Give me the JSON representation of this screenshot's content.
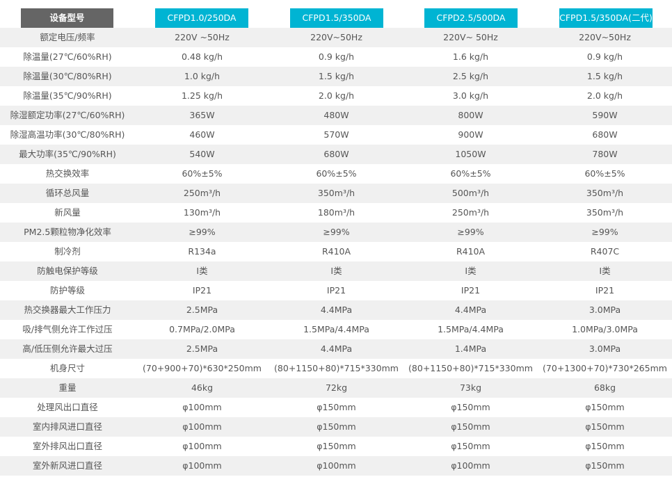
{
  "header": {
    "label": "设备型号",
    "models": [
      "CFPD1.0/250DA",
      "CFPD1.5/350DA",
      "CFPD2.5/500DA",
      "CFPD1.5/350DA(二代)"
    ]
  },
  "colors": {
    "header_dark": "#656565",
    "header_accent": "#00b4d3",
    "row_alt": "#f0f0f0",
    "text": "#555555"
  },
  "rows": [
    {
      "label": "额定电压/频率",
      "values": [
        "220V ~50Hz",
        "220V~50Hz",
        "220V~ 50Hz",
        "220V~50Hz"
      ]
    },
    {
      "label": "除温量(27℃/60%RH)",
      "values": [
        "0.48 kg/h",
        "0.9 kg/h",
        "1.6 kg/h",
        "0.9 kg/h"
      ]
    },
    {
      "label": "除温量(30℃/80%RH)",
      "values": [
        "1.0 kg/h",
        "1.5 kg/h",
        "2.5 kg/h",
        "1.5 kg/h"
      ]
    },
    {
      "label": "除温量(35℃/90%RH)",
      "values": [
        "1.25 kg/h",
        "2.0 kg/h",
        "3.0 kg/h",
        "2.0 kg/h"
      ]
    },
    {
      "label": "除湿额定功率(27℃/60%RH)",
      "values": [
        "365W",
        "480W",
        "800W",
        "590W"
      ]
    },
    {
      "label": "除湿高温功率(30℃/80%RH)",
      "values": [
        "460W",
        "570W",
        "900W",
        "680W"
      ]
    },
    {
      "label": "最大功率(35℃/90%RH)",
      "values": [
        "540W",
        "680W",
        "1050W",
        "780W"
      ]
    },
    {
      "label": "热交换效率",
      "values": [
        "60%±5%",
        "60%±5%",
        "60%±5%",
        "60%±5%"
      ]
    },
    {
      "label": "循环总风量",
      "values": [
        "250m³/h",
        "350m³/h",
        "500m³/h",
        "350m³/h"
      ]
    },
    {
      "label": "新风量",
      "values": [
        "130m³/h",
        "180m³/h",
        "250m³/h",
        "350m³/h"
      ]
    },
    {
      "label": "PM2.5颗粒物净化效率",
      "values": [
        "≥99%",
        "≥99%",
        "≥99%",
        "≥99%"
      ]
    },
    {
      "label": "制冷剂",
      "values": [
        "R134a",
        "R410A",
        "R410A",
        "R407C"
      ]
    },
    {
      "label": "防触电保护等级",
      "values": [
        "I类",
        "I类",
        "I类",
        "I类"
      ]
    },
    {
      "label": "防护等级",
      "values": [
        "IP21",
        "IP21",
        "IP21",
        "IP21"
      ]
    },
    {
      "label": "热交换器最大工作压力",
      "values": [
        "2.5MPa",
        "4.4MPa",
        "4.4MPa",
        "3.0MPa"
      ]
    },
    {
      "label": "吸/排气侧允许工作过压",
      "values": [
        "0.7MPa/2.0MPa",
        "1.5MPa/4.4MPa",
        "1.5MPa/4.4MPa",
        "1.0MPa/3.0MPa"
      ]
    },
    {
      "label": "高/低压侧允许最大过压",
      "values": [
        "2.5MPa",
        "4.4MPa",
        "1.4MPa",
        "3.0MPa"
      ]
    },
    {
      "label": "机身尺寸",
      "values": [
        "(70+900+70)*630*250mm",
        "(80+1150+80)*715*330mm",
        "(80+1150+80)*715*330mm",
        "(70+1300+70)*730*265mm"
      ]
    },
    {
      "label": "重量",
      "values": [
        "46kg",
        "72kg",
        "73kg",
        "68kg"
      ]
    },
    {
      "label": "处理风出口直径",
      "values": [
        "φ100mm",
        "φ150mm",
        "φ150mm",
        "φ150mm"
      ]
    },
    {
      "label": "室内排风进口直径",
      "values": [
        "φ100mm",
        "φ150mm",
        "φ150mm",
        "φ150mm"
      ]
    },
    {
      "label": "室外排风出口直径",
      "values": [
        "φ100mm",
        "φ150mm",
        "φ150mm",
        "φ150mm"
      ]
    },
    {
      "label": "室外新风进口直径",
      "values": [
        "φ100mm",
        "φ100mm",
        "φ100mm",
        "φ150mm"
      ]
    }
  ]
}
